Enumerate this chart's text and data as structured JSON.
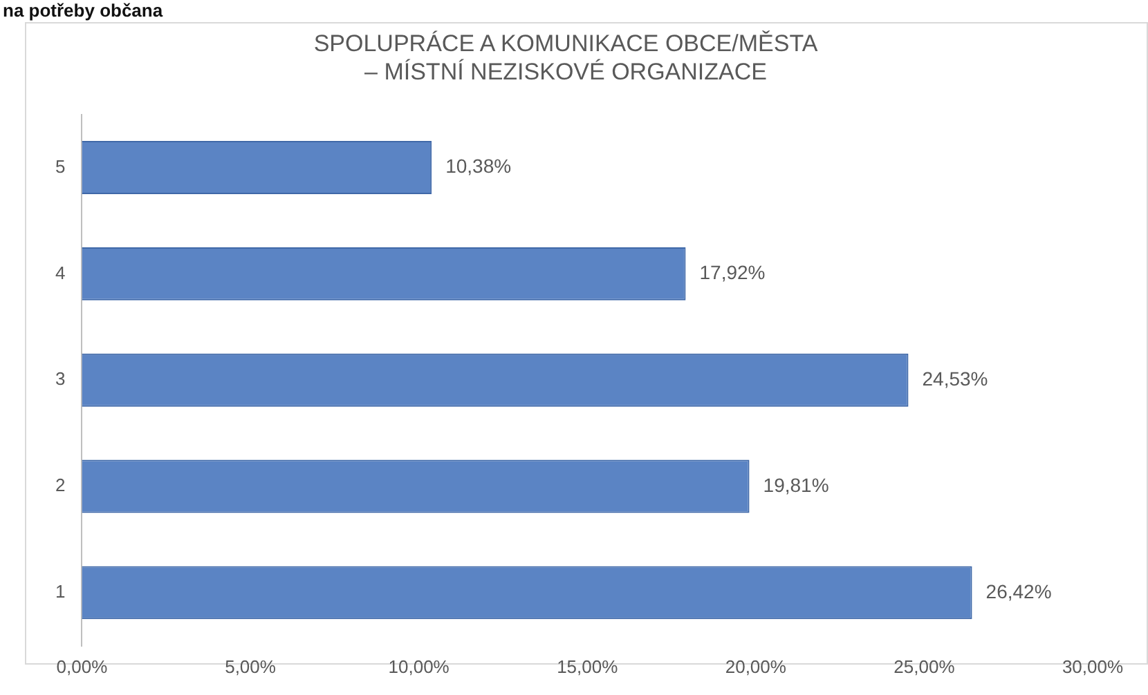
{
  "chart_data": {
    "type": "bar",
    "orientation": "horizontal",
    "title": "SPOLUPRÁCE A KOMUNIKACE OBCE/MĚSTA\n– MÍSTNÍ NEZISKOVÉ ORGANIZACE",
    "annotations": [
      "na potřeby občana"
    ],
    "categories": [
      "5",
      "4",
      "3",
      "2",
      "1"
    ],
    "values": [
      10.38,
      17.92,
      24.53,
      19.81,
      26.42
    ],
    "value_labels": [
      "10,38%",
      "17,92%",
      "24,53%",
      "19,81%",
      "26,42%"
    ],
    "color": "#5b84c4",
    "xlim": [
      0,
      30
    ],
    "xticks": [
      {
        "value": 0,
        "label": "0,00%"
      },
      {
        "value": 5,
        "label": "5,00%"
      },
      {
        "value": 10,
        "label": "10,00%"
      },
      {
        "value": 15,
        "label": "15,00%"
      },
      {
        "value": 20,
        "label": "20,00%"
      },
      {
        "value": 25,
        "label": "25,00%"
      },
      {
        "value": 30,
        "label": "30,00%"
      }
    ],
    "grid": false,
    "legend": false
  }
}
